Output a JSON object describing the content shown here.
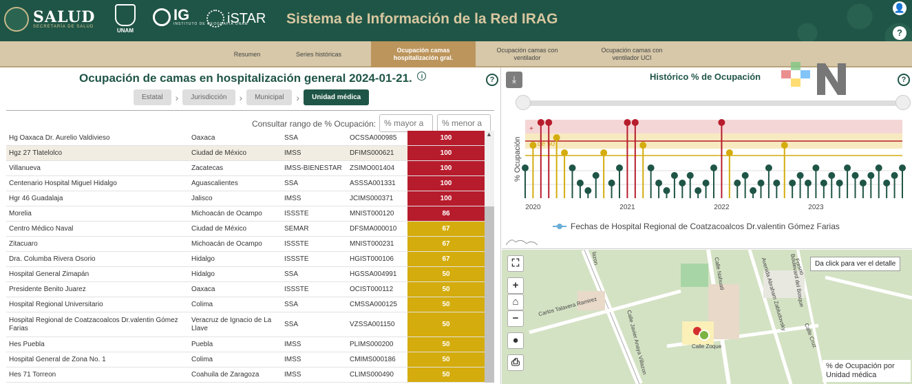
{
  "header": {
    "salud": "SALUD",
    "salud_sub": "SECRETARÍA DE SALUD",
    "unam": "UNAM",
    "ig": "IG",
    "ig_sub": "INSTITUTO DE GEOGRAFÍA UNAM",
    "istar": "iSTAR",
    "title": "Sistema de Información de la Red IRAG",
    "user_icon": "user-circle-icon",
    "help_icon": "question-circle-icon"
  },
  "nav": {
    "items": [
      {
        "label": "Resumen"
      },
      {
        "label": "Series históricas"
      },
      {
        "label": "Ocupación camas hospitalización gral."
      },
      {
        "label": "Ocupación camas con ventilador"
      },
      {
        "label": "Ocupación camas con ventilador UCI"
      }
    ],
    "active_index": 2
  },
  "left": {
    "title": "Ocupación de camas en hospitalización general 2024-01-21.",
    "info_icon": "i",
    "help": "?",
    "breadcrumbs": [
      "Estatal",
      "Jurisdicción",
      "Municipal",
      "Unidad médica"
    ],
    "active_crumb": 3,
    "range_label": "Consultar rango de % Ocupación:",
    "range_min_placeholder": "% mayor a",
    "range_max_placeholder": "% menor a",
    "colors": {
      "red": "#b71c2c",
      "orange": "#d32f2f",
      "yellow": "#d4ac0d"
    },
    "rows": [
      {
        "name": "Hg Oaxaca Dr. Aurelio Valdivieso",
        "state": "Oaxaca",
        "inst": "SSA",
        "clues": "OCSSA000985",
        "pct": "100",
        "level": "red"
      },
      {
        "name": "Hgz 27 Tlatelolco",
        "state": "Ciudad de México",
        "inst": "IMSS",
        "clues": "DFIMS000621",
        "pct": "100",
        "level": "red"
      },
      {
        "name": "Villanueva",
        "state": "Zacatecas",
        "inst": "IMSS-BIENESTAR",
        "clues": "ZSIMO001404",
        "pct": "100",
        "level": "red"
      },
      {
        "name": "Centenario Hospital Miguel Hidalgo",
        "state": "Aguascalientes",
        "inst": "SSA",
        "clues": "ASSSA001331",
        "pct": "100",
        "level": "red"
      },
      {
        "name": "Hgr 46 Guadalaja",
        "state": "Jalisco",
        "inst": "IMSS",
        "clues": "JCIMS000371",
        "pct": "100",
        "level": "red"
      },
      {
        "name": "Morelia",
        "state": "Michoacán de Ocampo",
        "inst": "ISSSTE",
        "clues": "MNIST000120",
        "pct": "86",
        "level": "red"
      },
      {
        "name": "Centro Médico Naval",
        "state": "Ciudad de México",
        "inst": "SEMAR",
        "clues": "DFSMA000010",
        "pct": "67",
        "level": "yellow"
      },
      {
        "name": "Zitacuaro",
        "state": "Michoacán de Ocampo",
        "inst": "ISSSTE",
        "clues": "MNIST000231",
        "pct": "67",
        "level": "yellow"
      },
      {
        "name": "Dra. Columba Rivera Osorio",
        "state": "Hidalgo",
        "inst": "ISSSTE",
        "clues": "HGIST000106",
        "pct": "67",
        "level": "yellow"
      },
      {
        "name": "Hospital General Zimapán",
        "state": "Hidalgo",
        "inst": "SSA",
        "clues": "HGSSA004991",
        "pct": "50",
        "level": "yellow"
      },
      {
        "name": "Presidente Benito Juarez",
        "state": "Oaxaca",
        "inst": "ISSSTE",
        "clues": "OCIST000112",
        "pct": "50",
        "level": "yellow"
      },
      {
        "name": "Hospital Regional Universitario",
        "state": "Colima",
        "inst": "SSA",
        "clues": "CMSSA000125",
        "pct": "50",
        "level": "yellow"
      },
      {
        "name": "Hospital Regional de Coatzacoalcos Dr.valentin Gómez Farias",
        "state": "Veracruz de Ignacio de La Llave",
        "inst": "SSA",
        "clues": "VZSSA001150",
        "pct": "50",
        "level": "yellow"
      },
      {
        "name": "Hes Puebla",
        "state": "Puebla",
        "inst": "IMSS",
        "clues": "PLIMS000200",
        "pct": "50",
        "level": "yellow"
      },
      {
        "name": "Hospital General de Zona No. 1",
        "state": "Colima",
        "inst": "IMSS",
        "clues": "CMIMS000186",
        "pct": "50",
        "level": "yellow"
      },
      {
        "name": "Hes 71 Torreon",
        "state": "Coahuila de Zaragoza",
        "inst": "IMSS",
        "clues": "CLIMS000490",
        "pct": "50",
        "level": "yellow"
      }
    ]
  },
  "chart": {
    "title": "Histórico % de Ocupación",
    "download_icon": "download-icon",
    "help": "?",
    "legend": "Fechas de Hospital Regional de Coatzacoalcos Dr.valentin Gómez Farias",
    "band_labels": [
      "+",
      "de 50"
    ],
    "colors": {
      "high": "#b71c2c",
      "mid": "#d4ac0d",
      "low": "#1f5546"
    }
  },
  "chart_data": {
    "type": "scatter",
    "ylabel": "% Ocupación",
    "x_ticks": [
      "2020",
      "2021",
      "2022",
      "2023"
    ],
    "series": [
      {
        "name": "Fechas de Hospital Regional de Coatzacoalcos Dr.valentin Gómez Farias",
        "x": [
          "2019-12",
          "2020-01",
          "2020-02",
          "2020-03",
          "2020-04",
          "2020-05",
          "2020-06",
          "2020-07",
          "2020-08",
          "2020-09",
          "2020-10",
          "2020-11",
          "2020-12",
          "2021-01",
          "2021-02",
          "2021-03",
          "2021-04",
          "2021-05",
          "2021-06",
          "2021-07",
          "2021-08",
          "2021-09",
          "2021-10",
          "2021-11",
          "2021-12",
          "2022-01",
          "2022-02",
          "2022-03",
          "2022-04",
          "2022-05",
          "2022-06",
          "2022-07",
          "2022-08",
          "2022-09",
          "2022-10",
          "2022-11",
          "2022-12",
          "2023-01",
          "2023-02",
          "2023-03",
          "2023-04",
          "2023-05",
          "2023-06",
          "2023-07",
          "2023-08",
          "2023-09",
          "2023-10",
          "2023-11",
          "2023-12"
        ],
        "y": [
          40,
          70,
          100,
          100,
          80,
          60,
          40,
          20,
          10,
          30,
          60,
          20,
          40,
          100,
          100,
          70,
          40,
          20,
          10,
          30,
          20,
          30,
          10,
          20,
          40,
          100,
          60,
          20,
          30,
          10,
          20,
          40,
          20,
          70,
          20,
          30,
          20,
          40,
          20,
          30,
          20,
          40,
          30,
          20,
          30,
          40,
          20,
          30,
          40
        ]
      }
    ]
  },
  "map": {
    "tooltip": "Da click para ver el detalle",
    "legend": "% de Ocupación por Unidad médica",
    "controls": [
      {
        "name": "fullscreen-icon",
        "glyph": "⛶"
      },
      {
        "name": "zoom-in-icon",
        "glyph": "+"
      },
      {
        "name": "home-icon",
        "glyph": "⌂"
      },
      {
        "name": "zoom-out-icon",
        "glyph": "−"
      },
      {
        "name": "locate-icon",
        "glyph": "●"
      },
      {
        "name": "print-icon",
        "glyph": "⎙"
      }
    ],
    "streets": [
      "Carlos Talavera Ramirez",
      "Calle Javier Anaya Villazon",
      "Calle Zoque",
      "Calle Nahuatl",
      "Avenida Abraham Zabludovsky",
      "Boulevard del Bosque",
      "Calle Cruz",
      "Fresno",
      "lazon"
    ]
  }
}
